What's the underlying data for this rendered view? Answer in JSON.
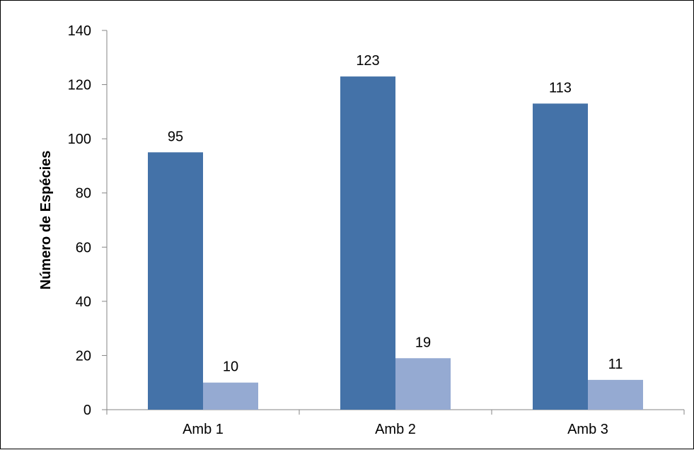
{
  "chart_data": {
    "type": "bar",
    "categories": [
      "Amb 1",
      "Amb 2",
      "Amb 3"
    ],
    "series": [
      {
        "values": [
          95,
          123,
          113
        ],
        "color": "#4472A8"
      },
      {
        "values": [
          10,
          19,
          11
        ],
        "color": "#95AAD2"
      }
    ],
    "title": "",
    "xlabel": "",
    "ylabel": "Número de Espécies",
    "ylim": [
      0,
      140
    ],
    "yticks": [
      0,
      20,
      40,
      60,
      80,
      100,
      120,
      140
    ],
    "grid": false,
    "legend": "none"
  }
}
